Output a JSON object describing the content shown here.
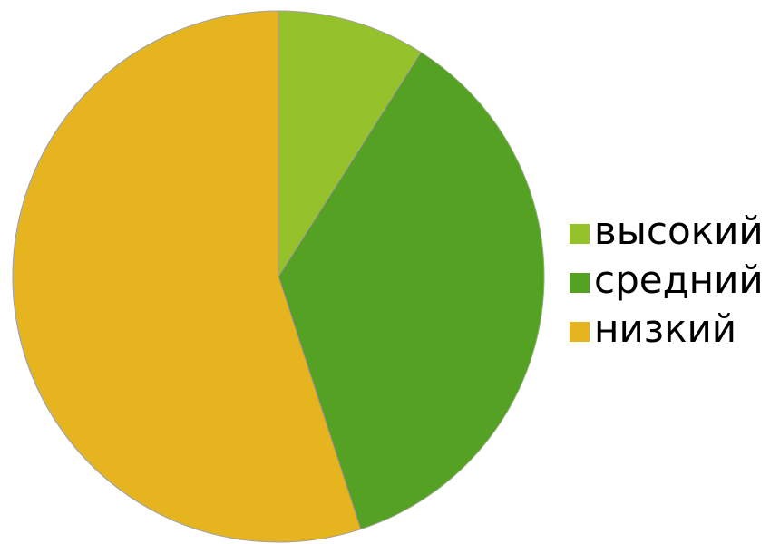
{
  "chart_data": {
    "type": "pie",
    "title": "",
    "categories": [
      "высокий",
      "средний",
      "низкий"
    ],
    "values": [
      9,
      36,
      55
    ],
    "colors": [
      "#95c12b",
      "#55a124",
      "#e5b41e"
    ],
    "legend_position": "right",
    "start_angle": "top",
    "direction": "clockwise"
  }
}
